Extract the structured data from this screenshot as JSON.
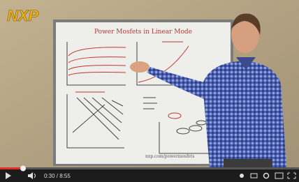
{
  "video": {
    "logo": "NXP",
    "board_title": "Power Mosfets in Linear Mode",
    "board_footer": "nxp.com/powermosfets"
  },
  "player": {
    "time": "0:30 / 8:55"
  }
}
